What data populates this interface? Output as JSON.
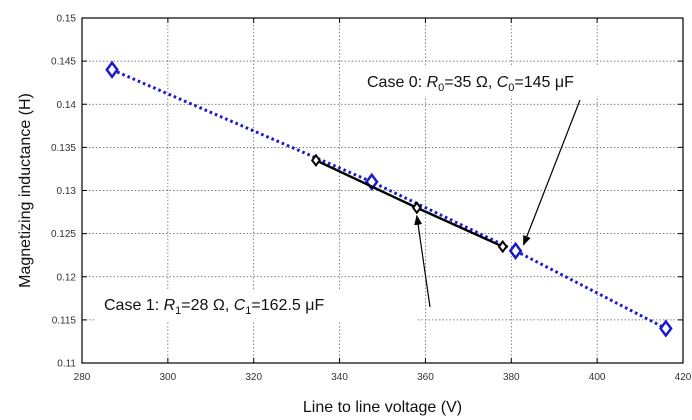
{
  "chart_data": {
    "type": "line",
    "title": "",
    "xlabel": "Line to line voltage (V)",
    "ylabel": "Magnetizing inductance (H)",
    "xlim": [
      280,
      420
    ],
    "ylim": [
      0.11,
      0.15
    ],
    "xticks": [
      "280",
      "300",
      "320",
      "340",
      "360",
      "380",
      "400",
      "420"
    ],
    "yticks": [
      "0.11",
      "0.115",
      "0.12",
      "0.125",
      "0.13",
      "0.135",
      "0.14",
      "0.145",
      "0.15"
    ],
    "grid": true,
    "series": [
      {
        "marker": "diamond",
        "style": "dotted",
        "color": "#1a1acc",
        "x": [
          287,
          347.5,
          381,
          416
        ],
        "y": [
          0.144,
          0.131,
          0.123,
          0.114
        ]
      },
      {
        "marker": "diamond",
        "style": "solid",
        "color": "#000000",
        "x": [
          334.5,
          358,
          378
        ],
        "y": [
          0.1335,
          0.128,
          0.1235
        ]
      }
    ],
    "annotations": [
      {
        "id": "case0",
        "parts": [
          {
            "t": "Case 0: ",
            "i": false
          },
          {
            "t": "R",
            "i": true
          },
          {
            "t": "0",
            "sub": true
          },
          {
            "t": "=35 Ω, ",
            "i": false
          },
          {
            "t": "C",
            "i": true
          },
          {
            "t": "0",
            "sub": true
          },
          {
            "t": "=145 μF",
            "i": false
          }
        ],
        "points_to": {
          "x": 381,
          "y": 0.123
        }
      },
      {
        "id": "case1",
        "parts": [
          {
            "t": "Case 1: ",
            "i": false
          },
          {
            "t": "R",
            "i": true
          },
          {
            "t": "1",
            "sub": true
          },
          {
            "t": "=28 Ω, ",
            "i": false
          },
          {
            "t": "C",
            "i": true
          },
          {
            "t": "1",
            "sub": true
          },
          {
            "t": "=162.5 μF",
            "i": false
          }
        ],
        "points_to": {
          "x": 358,
          "y": 0.128
        }
      }
    ]
  }
}
